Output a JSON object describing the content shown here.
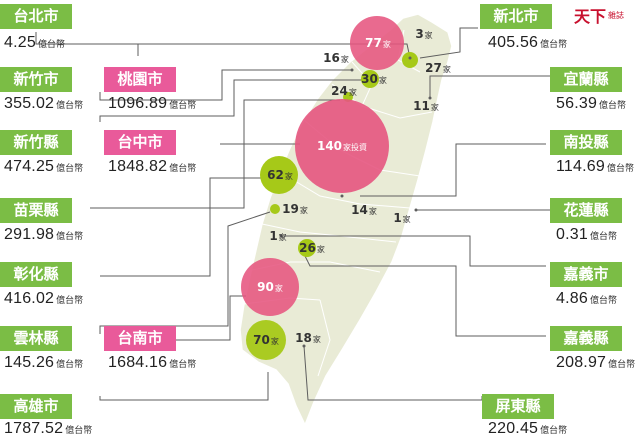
{
  "brand": {
    "logo_text": "天下",
    "logo_sub": "雜誌"
  },
  "colors": {
    "green": "#7bbd45",
    "pink": "#e95a9a",
    "bubble_green": "#a6c918",
    "bubble_pink": "#e6557f",
    "land": "#e9ebd6"
  },
  "unit_label": "億台幣",
  "company_unit": "家",
  "investment_suffix": "家投資",
  "regions": [
    {
      "name": "台北市",
      "amount": "4.25",
      "style": "green"
    },
    {
      "name": "新北市",
      "amount": "405.56",
      "style": "green"
    },
    {
      "name": "新竹市",
      "amount": "355.02",
      "style": "green"
    },
    {
      "name": "桃園市",
      "amount": "1096.89",
      "style": "pink"
    },
    {
      "name": "宜蘭縣",
      "amount": "56.39",
      "style": "green"
    },
    {
      "name": "新竹縣",
      "amount": "474.25",
      "style": "green"
    },
    {
      "name": "台中市",
      "amount": "1848.82",
      "style": "pink"
    },
    {
      "name": "南投縣",
      "amount": "114.69",
      "style": "green"
    },
    {
      "name": "苗栗縣",
      "amount": "291.98",
      "style": "green"
    },
    {
      "name": "花蓮縣",
      "amount": "0.31",
      "style": "green"
    },
    {
      "name": "彰化縣",
      "amount": "416.02",
      "style": "green"
    },
    {
      "name": "嘉義市",
      "amount": "4.86",
      "style": "green"
    },
    {
      "name": "雲林縣",
      "amount": "145.26",
      "style": "green"
    },
    {
      "name": "台南市",
      "amount": "1684.16",
      "style": "pink"
    },
    {
      "name": "嘉義縣",
      "amount": "208.97",
      "style": "green"
    },
    {
      "name": "高雄市",
      "amount": "1787.52",
      "style": "green"
    },
    {
      "name": "屏東縣",
      "amount": "220.45",
      "style": "green"
    }
  ],
  "bubbles": [
    {
      "count": "77",
      "unit": "家",
      "region": "桃園市",
      "color": "pink"
    },
    {
      "count": "3",
      "unit": "家",
      "region": "台北市",
      "color": "none"
    },
    {
      "count": "27",
      "unit": "家",
      "region": "新北市",
      "color": "green"
    },
    {
      "count": "16",
      "unit": "家",
      "region": "新竹市",
      "color": "none"
    },
    {
      "count": "30",
      "unit": "家",
      "region": "新竹縣",
      "color": "green"
    },
    {
      "count": "24",
      "unit": "家",
      "region": "苗栗縣",
      "color": "green"
    },
    {
      "count": "11",
      "unit": "家",
      "region": "宜蘭縣",
      "color": "none"
    },
    {
      "count": "140",
      "unit": "家投資",
      "region": "台中市",
      "color": "pink"
    },
    {
      "count": "62",
      "unit": "家",
      "region": "彰化縣",
      "color": "green"
    },
    {
      "count": "19",
      "unit": "家",
      "region": "雲林縣",
      "color": "green"
    },
    {
      "count": "14",
      "unit": "家",
      "region": "南投縣",
      "color": "none"
    },
    {
      "count": "1",
      "unit": "家",
      "region": "花蓮縣",
      "color": "none"
    },
    {
      "count": "1",
      "unit": "家",
      "region": "嘉義市",
      "color": "none"
    },
    {
      "count": "26",
      "unit": "家",
      "region": "嘉義縣",
      "color": "green"
    },
    {
      "count": "90",
      "unit": "家",
      "region": "台南市",
      "color": "pink"
    },
    {
      "count": "70",
      "unit": "家",
      "region": "高雄市",
      "color": "green"
    },
    {
      "count": "18",
      "unit": "家",
      "region": "屏東縣",
      "color": "none"
    }
  ]
}
